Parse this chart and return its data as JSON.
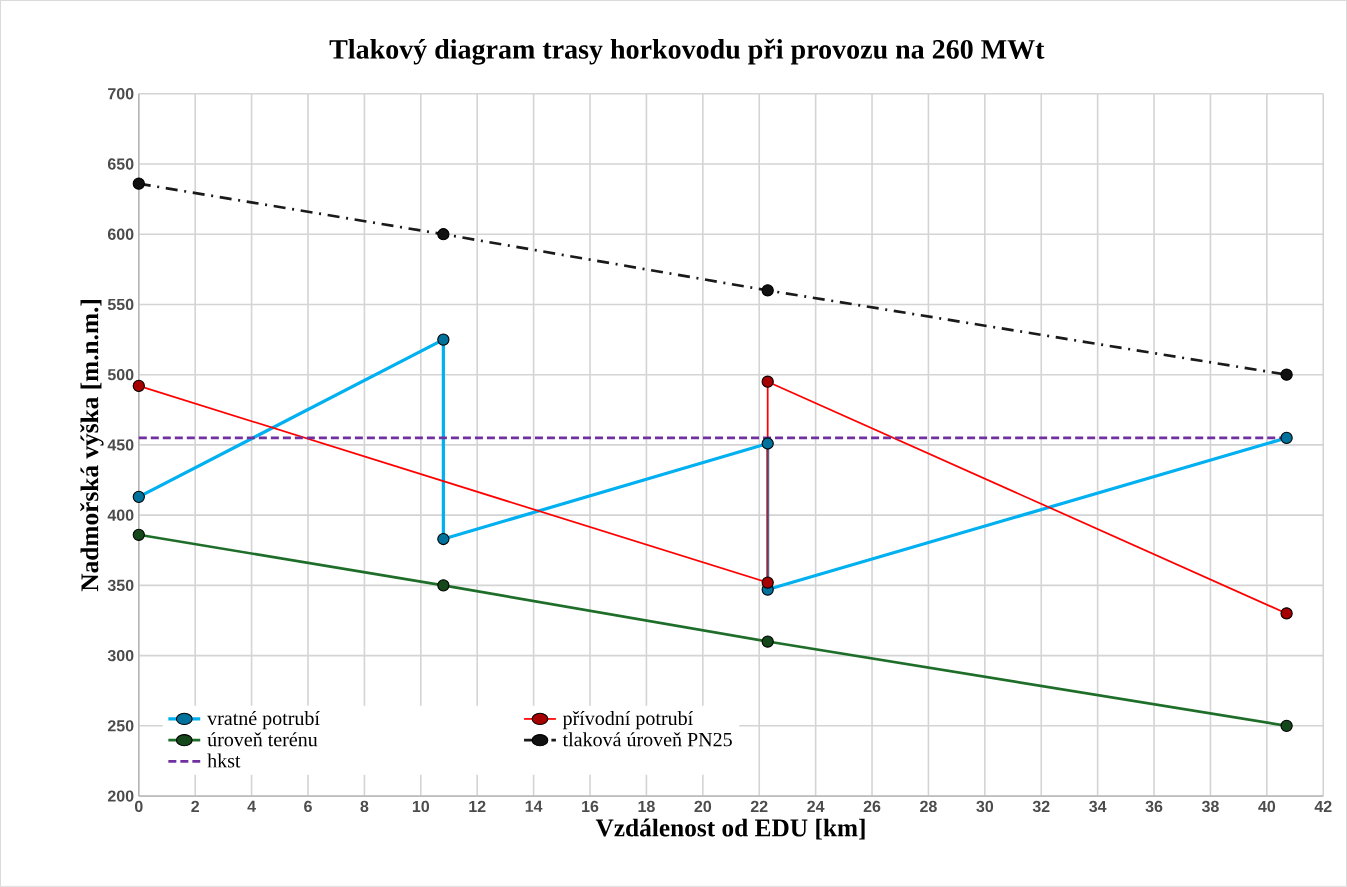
{
  "chart_data": {
    "type": "line",
    "title": "Tlakový diagram trasy horkovodu při provozu na 260 MWt",
    "xlabel": "Vzdálenost od EDU [km]",
    "ylabel": "Nadmořská výška [m.n.m.]",
    "xlim": [
      0,
      42
    ],
    "ylim": [
      200,
      700
    ],
    "xticks": [
      0,
      2,
      4,
      6,
      8,
      10,
      12,
      14,
      16,
      18,
      20,
      22,
      24,
      26,
      28,
      30,
      32,
      34,
      36,
      38,
      40,
      42
    ],
    "yticks": [
      200,
      250,
      300,
      350,
      400,
      450,
      500,
      550,
      600,
      650,
      700
    ],
    "grid": true,
    "legend": "bottom left",
    "series": [
      {
        "name": "vratné potrubí",
        "color": "#00b0f0",
        "marker": "circle",
        "line_style": "solid",
        "x": [
          0,
          10.8,
          10.8,
          22.3,
          22.3,
          40.7
        ],
        "values": [
          413,
          525,
          383,
          451,
          347,
          455
        ]
      },
      {
        "name": "přívodní potrubí",
        "color": "#ff0000",
        "marker": "circle",
        "line_style": "solid",
        "x": [
          0,
          22.3,
          22.3,
          40.7
        ],
        "values": [
          492,
          352,
          495,
          330
        ]
      },
      {
        "name": "úroveň terénu",
        "color": "#1e6e2a",
        "marker": "circle",
        "line_style": "solid",
        "x": [
          0,
          10.8,
          22.3,
          40.7
        ],
        "values": [
          386,
          350,
          310,
          250
        ]
      },
      {
        "name": "tlaková úroveň PN25",
        "color": "#1a1a1a",
        "marker": "circle",
        "line_style": "dashdot",
        "x": [
          0,
          10.8,
          22.3,
          40.7
        ],
        "values": [
          636,
          600,
          560,
          500
        ]
      },
      {
        "name": "hkst",
        "color": "#7030a0",
        "marker": "none",
        "line_style": "dashed",
        "x": [
          0,
          40.7
        ],
        "values": [
          455,
          455
        ]
      }
    ]
  }
}
